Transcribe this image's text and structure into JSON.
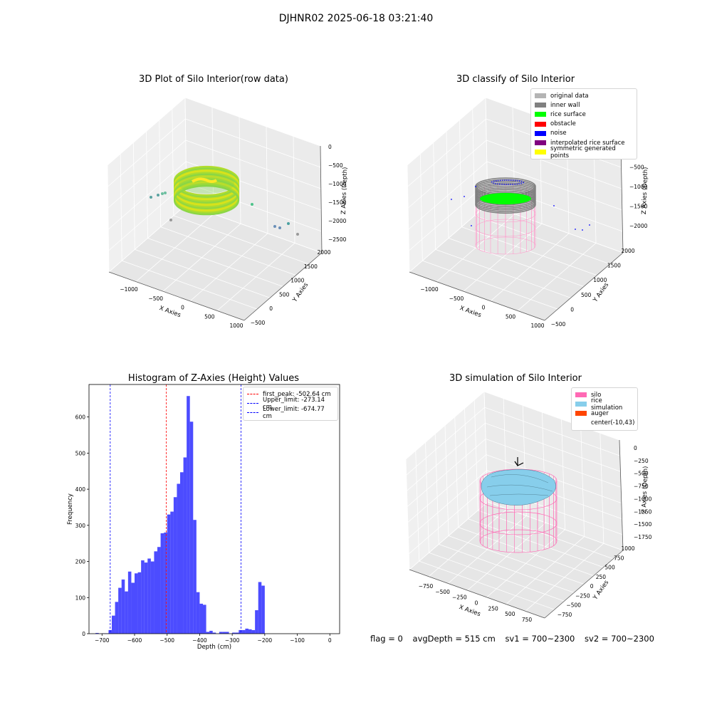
{
  "suptitle": "DJHNR02 2025-06-18 03:21:40",
  "panels": {
    "raw": {
      "title": "3D Plot of Silo Interior(row data)",
      "xlabel": "X Axies",
      "ylabel": "Y Axies",
      "zlabel": "Z Axies (Depth)",
      "xticks": [
        "−1000",
        "−500",
        "0",
        "500",
        "1000"
      ],
      "yticks": [
        "−500",
        "0",
        "500",
        "1000",
        "1500",
        "2000"
      ],
      "zticks": [
        "0",
        "−500",
        "−1000",
        "−1500",
        "−2000",
        "−2500"
      ]
    },
    "classify": {
      "title": "3D classify of Silo Interior",
      "xlabel": "X Axies",
      "ylabel": "Y Axies",
      "zlabel": "Z Axies (Depth)",
      "xticks": [
        "−1000",
        "−500",
        "0",
        "500",
        "1000"
      ],
      "yticks": [
        "−500",
        "0",
        "500",
        "1000",
        "1500",
        "2000"
      ],
      "zticks": [
        "0",
        "−500",
        "−1000",
        "−1500",
        "−2000"
      ],
      "legend": [
        {
          "label": "original data",
          "color": "#b4b4b4"
        },
        {
          "label": "inner wall",
          "color": "#808080"
        },
        {
          "label": "rice surface",
          "color": "#00ff00"
        },
        {
          "label": "obstacle",
          "color": "#ff0000"
        },
        {
          "label": "noise",
          "color": "#0000ff"
        },
        {
          "label": "interpolated rice surface",
          "color": "#800080"
        },
        {
          "label": "symmetric generated points",
          "color": "#ffff00"
        }
      ]
    },
    "simulation": {
      "title": "3D simulation of Silo Interior",
      "xlabel": "X Axies",
      "ylabel": "Y Axies",
      "zlabel": "Z Axies (Depth)",
      "xticks": [
        "−750",
        "−500",
        "−250",
        "0",
        "250",
        "500",
        "750"
      ],
      "yticks": [
        "−750",
        "−500",
        "−250",
        "0",
        "250",
        "500",
        "750",
        "1000"
      ],
      "zticks": [
        "0",
        "−250",
        "−500",
        "−750",
        "−1000",
        "−1250",
        "−1500",
        "−1750"
      ],
      "legend": [
        {
          "label": "silo",
          "color": "#ff69b4"
        },
        {
          "label": "rice simulation",
          "color": "#87ceeb"
        },
        {
          "label": "auger",
          "color": "#ff4500"
        },
        {
          "label": "center(-10,43)",
          "color": ""
        }
      ]
    }
  },
  "chart_data": {
    "type": "bar",
    "title": "Histogram of Z-Axies (Height) Values",
    "xlabel": "Depth (cm)",
    "ylabel": "Frequency",
    "xlim": [
      -740,
      30
    ],
    "ylim": [
      0,
      690
    ],
    "xticks": [
      -700,
      -600,
      -500,
      -400,
      -300,
      -200,
      -100,
      0
    ],
    "xtick_labels": [
      "−700",
      "−600",
      "−500",
      "−400",
      "−300",
      "−200",
      "−100",
      "0"
    ],
    "yticks": [
      0,
      100,
      200,
      300,
      400,
      500,
      600
    ],
    "bar_color": "#0000ff",
    "bins": [
      [
        -720,
        -710,
        2
      ],
      [
        -700,
        -690,
        1
      ],
      [
        -690,
        -680,
        1
      ],
      [
        -680,
        -670,
        10
      ],
      [
        -670,
        -660,
        50
      ],
      [
        -660,
        -650,
        88
      ],
      [
        -650,
        -640,
        127
      ],
      [
        -640,
        -630,
        150
      ],
      [
        -630,
        -620,
        117
      ],
      [
        -620,
        -610,
        172
      ],
      [
        -610,
        -600,
        141
      ],
      [
        -600,
        -590,
        167
      ],
      [
        -590,
        -580,
        170
      ],
      [
        -580,
        -570,
        203
      ],
      [
        -570,
        -560,
        197
      ],
      [
        -560,
        -550,
        208
      ],
      [
        -550,
        -540,
        200
      ],
      [
        -540,
        -530,
        228
      ],
      [
        -530,
        -520,
        240
      ],
      [
        -520,
        -510,
        278
      ],
      [
        -510,
        -500,
        280
      ],
      [
        -500,
        -490,
        330
      ],
      [
        -490,
        -480,
        338
      ],
      [
        -480,
        -470,
        378
      ],
      [
        -470,
        -460,
        415
      ],
      [
        -460,
        -450,
        447
      ],
      [
        -450,
        -440,
        488
      ],
      [
        -440,
        -430,
        658
      ],
      [
        -430,
        -420,
        587
      ],
      [
        -420,
        -410,
        315
      ],
      [
        -410,
        -400,
        115
      ],
      [
        -400,
        -390,
        83
      ],
      [
        -390,
        -380,
        80
      ],
      [
        -380,
        -370,
        5
      ],
      [
        -370,
        -360,
        8
      ],
      [
        -360,
        -350,
        3
      ],
      [
        -340,
        -330,
        5
      ],
      [
        -330,
        -320,
        5
      ],
      [
        -320,
        -310,
        5
      ],
      [
        -300,
        -290,
        3
      ],
      [
        -290,
        -280,
        3
      ],
      [
        -280,
        -270,
        10
      ],
      [
        -270,
        -260,
        10
      ],
      [
        -260,
        -250,
        14
      ],
      [
        -250,
        -240,
        12
      ],
      [
        -240,
        -230,
        10
      ],
      [
        -230,
        -220,
        65
      ],
      [
        -220,
        -210,
        143
      ],
      [
        -210,
        -200,
        133
      ]
    ],
    "vlines": [
      {
        "label": "first_peak: -502.64 cm",
        "x": -502.64,
        "color": "#ff0000"
      },
      {
        "label": "Upper_limit: -273.14 cm",
        "x": -273.14,
        "color": "#0000ff"
      },
      {
        "label": "Lower_limit: -674.77 cm",
        "x": -674.77,
        "color": "#0000ff"
      }
    ]
  },
  "footer": {
    "flag": "flag = 0",
    "avg": "avgDepth = 515 cm",
    "sv1": "sv1 = 700~2300",
    "sv2": "sv2 = 700~2300"
  }
}
